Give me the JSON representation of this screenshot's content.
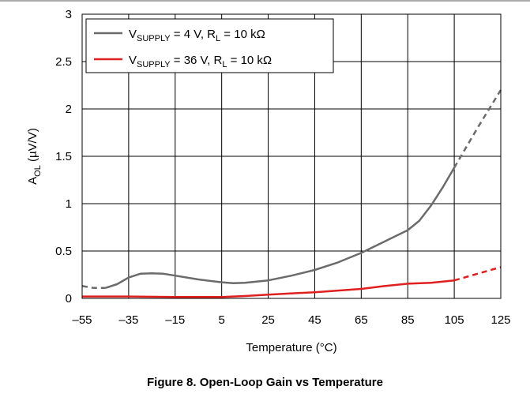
{
  "caption": "Figure 8. Open-Loop Gain vs Temperature",
  "chart_data": {
    "type": "line",
    "xlabel": "Temperature (°C)",
    "ylabel_main": "A",
    "ylabel_sub": "OL",
    "ylabel_unit": " (µV/V)",
    "xlim": [
      -55,
      125
    ],
    "ylim": [
      0,
      3
    ],
    "x_ticks": [
      -55,
      -35,
      -15,
      5,
      25,
      45,
      65,
      85,
      105,
      125
    ],
    "x_tick_labels": [
      "–55",
      "–35",
      "–15",
      "5",
      "25",
      "45",
      "65",
      "85",
      "105",
      "125"
    ],
    "y_ticks": [
      0,
      0.5,
      1,
      1.5,
      2,
      2.5,
      3
    ],
    "y_tick_labels": [
      "0",
      "0.5",
      "1",
      "1.5",
      "2",
      "2.5",
      "3"
    ],
    "grid": true,
    "legend_position": "top-left",
    "series": [
      {
        "legend": {
          "main": "V",
          "sub1": "SUPPLY",
          "mid": " = 4 V, R",
          "sub2": "L",
          "tail": " = 10 kΩ"
        },
        "color": "#6b6b6b",
        "solid": [
          [
            -45,
            0.11
          ],
          [
            -40,
            0.15
          ],
          [
            -35,
            0.22
          ],
          [
            -30,
            0.26
          ],
          [
            -25,
            0.265
          ],
          [
            -20,
            0.26
          ],
          [
            -15,
            0.24
          ],
          [
            -5,
            0.2
          ],
          [
            5,
            0.17
          ],
          [
            10,
            0.16
          ],
          [
            15,
            0.165
          ],
          [
            25,
            0.19
          ],
          [
            35,
            0.24
          ],
          [
            45,
            0.3
          ],
          [
            55,
            0.38
          ],
          [
            65,
            0.48
          ],
          [
            75,
            0.6
          ],
          [
            80,
            0.66
          ],
          [
            85,
            0.72
          ],
          [
            90,
            0.82
          ],
          [
            95,
            0.98
          ],
          [
            100,
            1.17
          ],
          [
            105,
            1.38
          ]
        ],
        "dashed": [
          [
            -55,
            0.13
          ],
          [
            -50,
            0.11
          ],
          [
            -45,
            0.11
          ]
        ],
        "dashed_end": [
          [
            105,
            1.38
          ],
          [
            115,
            1.8
          ],
          [
            125,
            2.2
          ]
        ]
      },
      {
        "legend": {
          "main": "V",
          "sub1": "SUPPLY",
          "mid": " = 36 V, R",
          "sub2": "L",
          "tail": " = 10 kΩ"
        },
        "color": "#e0201e",
        "solid": [
          [
            -55,
            0.02
          ],
          [
            -35,
            0.02
          ],
          [
            -15,
            0.015
          ],
          [
            5,
            0.015
          ],
          [
            15,
            0.025
          ],
          [
            25,
            0.04
          ],
          [
            45,
            0.065
          ],
          [
            65,
            0.1
          ],
          [
            75,
            0.13
          ],
          [
            85,
            0.155
          ],
          [
            95,
            0.165
          ],
          [
            105,
            0.19
          ]
        ],
        "dashed": [],
        "dashed_end": [
          [
            105,
            0.19
          ],
          [
            115,
            0.26
          ],
          [
            125,
            0.33
          ]
        ]
      }
    ]
  }
}
